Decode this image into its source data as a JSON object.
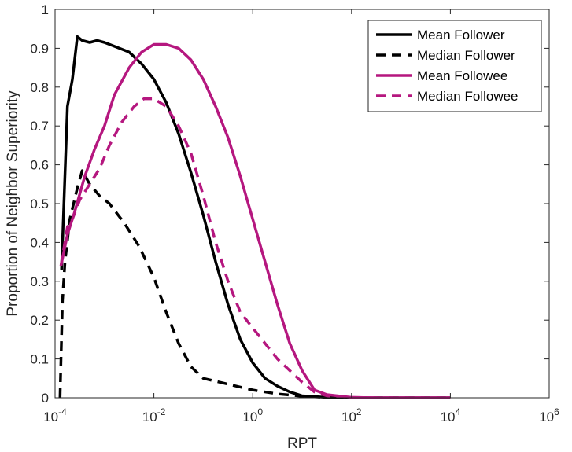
{
  "chart_data": {
    "type": "line",
    "title": "",
    "xlabel": "RPT",
    "ylabel": "Proportion of Neighbor Superiority",
    "xscale": "log10",
    "xlim_exp": [
      -4,
      6
    ],
    "ylim": [
      0,
      1
    ],
    "x_tick_labels": [
      {
        "base": "10",
        "exp": "-4"
      },
      {
        "base": "10",
        "exp": "-2"
      },
      {
        "base": "10",
        "exp": "0"
      },
      {
        "base": "10",
        "exp": "2"
      },
      {
        "base": "10",
        "exp": "4"
      },
      {
        "base": "10",
        "exp": "6"
      }
    ],
    "y_ticks": [
      0,
      0.1,
      0.2,
      0.3,
      0.4,
      0.5,
      0.6,
      0.7,
      0.8,
      0.9,
      1
    ],
    "y_tick_labels": [
      "0",
      "0.1",
      "0.2",
      "0.3",
      "0.4",
      "0.5",
      "0.6",
      "0.7",
      "0.8",
      "0.9",
      "1"
    ],
    "grid": false,
    "legend_position": "top-right",
    "series": [
      {
        "name": "Mean Follower",
        "color": "#000000",
        "dash": "solid",
        "points": [
          [
            -3.87,
            0.33
          ],
          [
            -3.75,
            0.75
          ],
          [
            -3.65,
            0.82
          ],
          [
            -3.55,
            0.93
          ],
          [
            -3.45,
            0.92
          ],
          [
            -3.3,
            0.915
          ],
          [
            -3.15,
            0.92
          ],
          [
            -3.0,
            0.915
          ],
          [
            -2.8,
            0.905
          ],
          [
            -2.5,
            0.89
          ],
          [
            -2.25,
            0.86
          ],
          [
            -2.0,
            0.82
          ],
          [
            -1.75,
            0.76
          ],
          [
            -1.5,
            0.68
          ],
          [
            -1.25,
            0.58
          ],
          [
            -1.0,
            0.47
          ],
          [
            -0.75,
            0.35
          ],
          [
            -0.5,
            0.24
          ],
          [
            -0.25,
            0.15
          ],
          [
            0.0,
            0.09
          ],
          [
            0.25,
            0.05
          ],
          [
            0.5,
            0.03
          ],
          [
            0.75,
            0.015
          ],
          [
            1.0,
            0.005
          ],
          [
            1.5,
            0.001
          ],
          [
            2.0,
            0.0
          ],
          [
            4.0,
            0.0
          ]
        ]
      },
      {
        "name": "Median Follower",
        "color": "#000000",
        "dash": "dashed",
        "points": [
          [
            -3.9,
            0.0
          ],
          [
            -3.85,
            0.25
          ],
          [
            -3.8,
            0.35
          ],
          [
            -3.7,
            0.46
          ],
          [
            -3.55,
            0.54
          ],
          [
            -3.45,
            0.585
          ],
          [
            -3.3,
            0.55
          ],
          [
            -3.1,
            0.52
          ],
          [
            -2.9,
            0.5
          ],
          [
            -2.6,
            0.45
          ],
          [
            -2.3,
            0.39
          ],
          [
            -2.0,
            0.31
          ],
          [
            -1.75,
            0.22
          ],
          [
            -1.5,
            0.14
          ],
          [
            -1.25,
            0.08
          ],
          [
            -1.0,
            0.05
          ],
          [
            -0.5,
            0.035
          ],
          [
            0.0,
            0.02
          ],
          [
            0.5,
            0.01
          ],
          [
            1.0,
            0.004
          ],
          [
            1.5,
            0.001
          ],
          [
            2.0,
            0.0
          ],
          [
            4.0,
            0.0
          ]
        ]
      },
      {
        "name": "Mean Followee",
        "color": "#B5177F",
        "dash": "solid",
        "points": [
          [
            -3.88,
            0.34
          ],
          [
            -3.75,
            0.42
          ],
          [
            -3.6,
            0.48
          ],
          [
            -3.4,
            0.57
          ],
          [
            -3.2,
            0.64
          ],
          [
            -3.0,
            0.7
          ],
          [
            -2.8,
            0.78
          ],
          [
            -2.5,
            0.85
          ],
          [
            -2.25,
            0.89
          ],
          [
            -2.0,
            0.91
          ],
          [
            -1.75,
            0.91
          ],
          [
            -1.5,
            0.9
          ],
          [
            -1.25,
            0.87
          ],
          [
            -1.0,
            0.82
          ],
          [
            -0.75,
            0.75
          ],
          [
            -0.5,
            0.67
          ],
          [
            -0.25,
            0.57
          ],
          [
            0.0,
            0.46
          ],
          [
            0.25,
            0.35
          ],
          [
            0.5,
            0.24
          ],
          [
            0.75,
            0.14
          ],
          [
            1.0,
            0.07
          ],
          [
            1.25,
            0.02
          ],
          [
            1.5,
            0.008
          ],
          [
            2.0,
            0.001
          ],
          [
            2.5,
            0.0
          ],
          [
            4.0,
            0.0
          ]
        ]
      },
      {
        "name": "Median Followee",
        "color": "#B5177F",
        "dash": "dashed",
        "points": [
          [
            -3.88,
            0.34
          ],
          [
            -3.75,
            0.44
          ],
          [
            -3.65,
            0.46
          ],
          [
            -3.5,
            0.51
          ],
          [
            -3.3,
            0.55
          ],
          [
            -3.1,
            0.59
          ],
          [
            -2.9,
            0.65
          ],
          [
            -2.65,
            0.71
          ],
          [
            -2.4,
            0.75
          ],
          [
            -2.2,
            0.77
          ],
          [
            -2.0,
            0.77
          ],
          [
            -1.75,
            0.75
          ],
          [
            -1.5,
            0.7
          ],
          [
            -1.25,
            0.63
          ],
          [
            -1.0,
            0.52
          ],
          [
            -0.75,
            0.4
          ],
          [
            -0.5,
            0.3
          ],
          [
            -0.25,
            0.22
          ],
          [
            0.0,
            0.18
          ],
          [
            0.25,
            0.14
          ],
          [
            0.5,
            0.1
          ],
          [
            0.75,
            0.07
          ],
          [
            1.0,
            0.04
          ],
          [
            1.25,
            0.015
          ],
          [
            1.5,
            0.005
          ],
          [
            2.0,
            0.001
          ],
          [
            2.5,
            0.0
          ],
          [
            4.0,
            0.0
          ]
        ]
      }
    ]
  }
}
